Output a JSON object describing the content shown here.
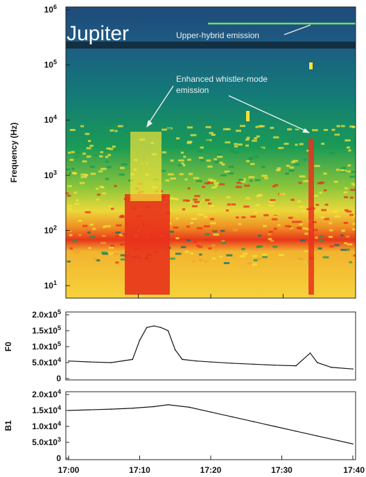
{
  "chart_data": [
    {
      "type": "heatmap",
      "title": "Jupiter",
      "ylabel": "Frequency (Hz)",
      "yscale": "log",
      "yticks": [
        "10^6",
        "10^5",
        "10^4",
        "10^3",
        "10^2",
        "10^1"
      ],
      "ytick_values": [
        1000000,
        100000,
        10000,
        1000,
        100,
        10
      ],
      "annotations": [
        {
          "text": "Upper-hybrid emission"
        },
        {
          "text": "Enhanced whistler-mode"
        },
        {
          "text": "emission"
        }
      ],
      "colors": {
        "low": "#1e4a78",
        "mid": "#1a9a50",
        "high": "#f4e23a",
        "peak": "#e8321c"
      }
    },
    {
      "type": "line",
      "ylabel": "F0",
      "ylim": [
        0,
        200000
      ],
      "yticks": [
        "2.0x10^5",
        "1.5x10^5",
        "1.0x10^5",
        "5.0x10^4",
        "0"
      ],
      "ytick_values": [
        200000,
        150000,
        100000,
        50000,
        0
      ],
      "x": [
        "17:00",
        "17:03",
        "17:06",
        "17:09",
        "17:10",
        "17:11",
        "17:12",
        "17:13",
        "17:14",
        "17:15",
        "17:16",
        "17:18",
        "17:20",
        "17:23",
        "17:26",
        "17:29",
        "17:32",
        "17:34",
        "17:35",
        "17:37",
        "17:40"
      ],
      "values": [
        55000,
        52000,
        50000,
        60000,
        120000,
        160000,
        165000,
        160000,
        150000,
        90000,
        60000,
        55000,
        52000,
        48000,
        45000,
        42000,
        40000,
        80000,
        50000,
        35000,
        30000
      ]
    },
    {
      "type": "line",
      "ylabel": "B1",
      "ylim": [
        0,
        20000
      ],
      "yticks": [
        "2.0x10^4",
        "1.5x10^4",
        "1.0x10^4",
        "5.0x10^3",
        "0"
      ],
      "ytick_values": [
        20000,
        15000,
        10000,
        5000,
        0
      ],
      "x": [
        "17:00",
        "17:03",
        "17:06",
        "17:08",
        "17:09",
        "17:12",
        "17:14",
        "17:17",
        "17:20",
        "17:23",
        "17:26",
        "17:29",
        "17:32",
        "17:35",
        "17:38",
        "17:40"
      ],
      "values": [
        15000,
        15200,
        15400,
        15600,
        15700,
        16200,
        16800,
        16000,
        14500,
        13000,
        11500,
        10000,
        8500,
        7000,
        5500,
        4500
      ],
      "xticks": [
        "17:00",
        "17:10",
        "17:20",
        "17:30",
        "17:40"
      ]
    }
  ]
}
